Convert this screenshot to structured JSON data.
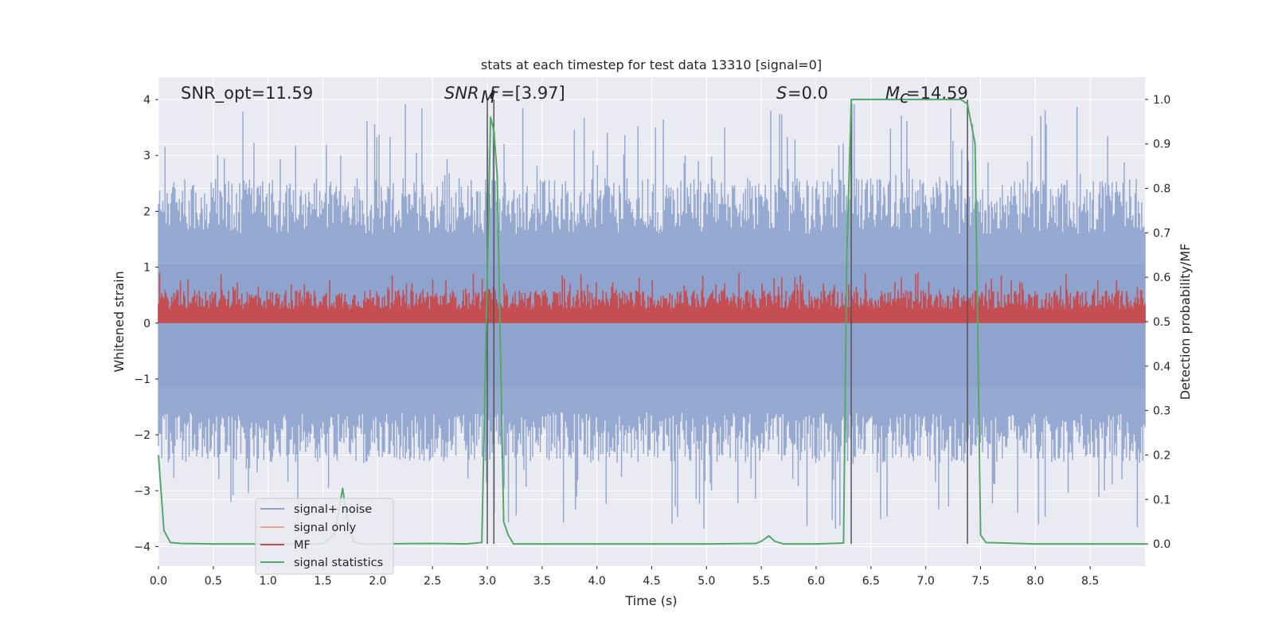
{
  "chart_data": {
    "type": "line",
    "title": "stats at each timestep for test data 13310 [signal=0]",
    "xlabel": "Time (s)",
    "ylabel": "Whitened strain",
    "y2label": "Detection probability/MF",
    "xlim": [
      0,
      9.0
    ],
    "ylim": [
      -4.35,
      4.4
    ],
    "y2lim": [
      -0.05,
      1.05
    ],
    "xticks": [
      "0.0",
      "0.5",
      "1.0",
      "1.5",
      "2.0",
      "2.5",
      "3.0",
      "3.5",
      "4.0",
      "4.5",
      "5.0",
      "5.5",
      "6.0",
      "6.5",
      "7.0",
      "7.5",
      "8.0",
      "8.5"
    ],
    "yticks": [
      "4",
      "3",
      "2",
      "1",
      "0",
      "−1",
      "−2",
      "−3",
      "−4"
    ],
    "y2ticks": [
      "1.0",
      "0.9",
      "0.8",
      "0.7",
      "0.6",
      "0.5",
      "0.4",
      "0.3",
      "0.2",
      "0.1",
      "0.0"
    ],
    "annotations": {
      "snr_opt": "SNR_opt=11.59",
      "snr_mf": "=[3.97]",
      "s_value": "=0.0",
      "mc_value": "=14.59"
    },
    "legend": {
      "position": "lower-left",
      "entries": [
        "signal+ noise",
        "signal only",
        "MF",
        "signal statistics"
      ]
    },
    "colors": {
      "noise": "#8da2cc",
      "signal_only": "#e8a485",
      "mf": "#c44e52",
      "stats": "#55a868",
      "vline": "#555555",
      "background": "#eaeaf2"
    },
    "series": [
      {
        "name": "signal statistics",
        "x": [
          0.0,
          0.05,
          0.11,
          0.2,
          0.5,
          1.0,
          1.5,
          1.6,
          1.65,
          1.68,
          1.72,
          1.78,
          1.85,
          2.0,
          2.5,
          2.8,
          2.95,
          2.99,
          3.03,
          3.06,
          3.09,
          3.15,
          3.19,
          3.24,
          3.3,
          4.0,
          5.0,
          5.45,
          5.5,
          5.57,
          5.62,
          5.7,
          6.0,
          6.25,
          6.28,
          6.32,
          6.38,
          7.0,
          7.32,
          7.38,
          7.45,
          7.5,
          7.55,
          8.0,
          9.0
        ],
        "y": [
          0.2,
          0.03,
          0.003,
          0.001,
          0.0,
          0.0,
          0.0,
          0.02,
          0.08,
          0.125,
          0.06,
          0.005,
          0.0,
          0.0,
          0.001,
          0.0,
          0.003,
          0.48,
          0.96,
          0.93,
          0.83,
          0.05,
          0.02,
          0.0,
          0.0,
          0.0,
          0.0,
          0.001,
          0.006,
          0.018,
          0.006,
          0.0,
          0.0,
          0.002,
          0.65,
          1.0,
          1.0,
          1.0,
          1.0,
          0.99,
          0.9,
          0.02,
          0.003,
          0.0,
          0.0
        ]
      }
    ],
    "vlines": [
      3.0,
      3.06,
      6.32,
      7.38
    ],
    "noise_summary": {
      "dense_range": [
        -1.6,
        1.6
      ],
      "spike_range": [
        -3.7,
        4.0
      ],
      "points": 900
    },
    "mf_summary": {
      "range": [
        0.0,
        0.9
      ],
      "points": 900
    },
    "snr_ts_markers": [
      1.65,
      1.85,
      2.0
    ]
  }
}
